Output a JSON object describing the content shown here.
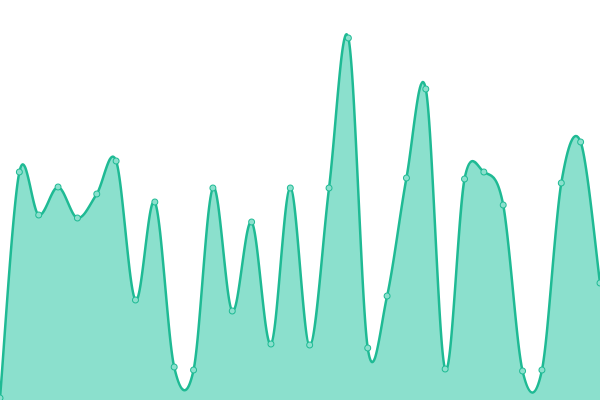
{
  "chart_data": {
    "type": "area",
    "categories": [
      null,
      null,
      null,
      null,
      null,
      null,
      null,
      null,
      null,
      null,
      null,
      null,
      null,
      null,
      null,
      null,
      null,
      null,
      null,
      null,
      null,
      null,
      null,
      null,
      null,
      null,
      null,
      null,
      null,
      null,
      null,
      null
    ],
    "values": [
      0.5,
      57,
      46.25,
      53.25,
      45.5,
      51.5,
      59.75,
      25,
      49.5,
      8.25,
      7.5,
      53,
      22.25,
      44.5,
      14,
      53,
      13.75,
      53,
      90.5,
      13,
      26,
      55.5,
      77.75,
      7.75,
      55.25,
      57,
      48.75,
      7.25,
      7.5,
      54.25,
      64.5,
      29.25
    ],
    "color": "#1fba94",
    "fill": "#8be0cd",
    "ylim": [
      0,
      100
    ]
  }
}
